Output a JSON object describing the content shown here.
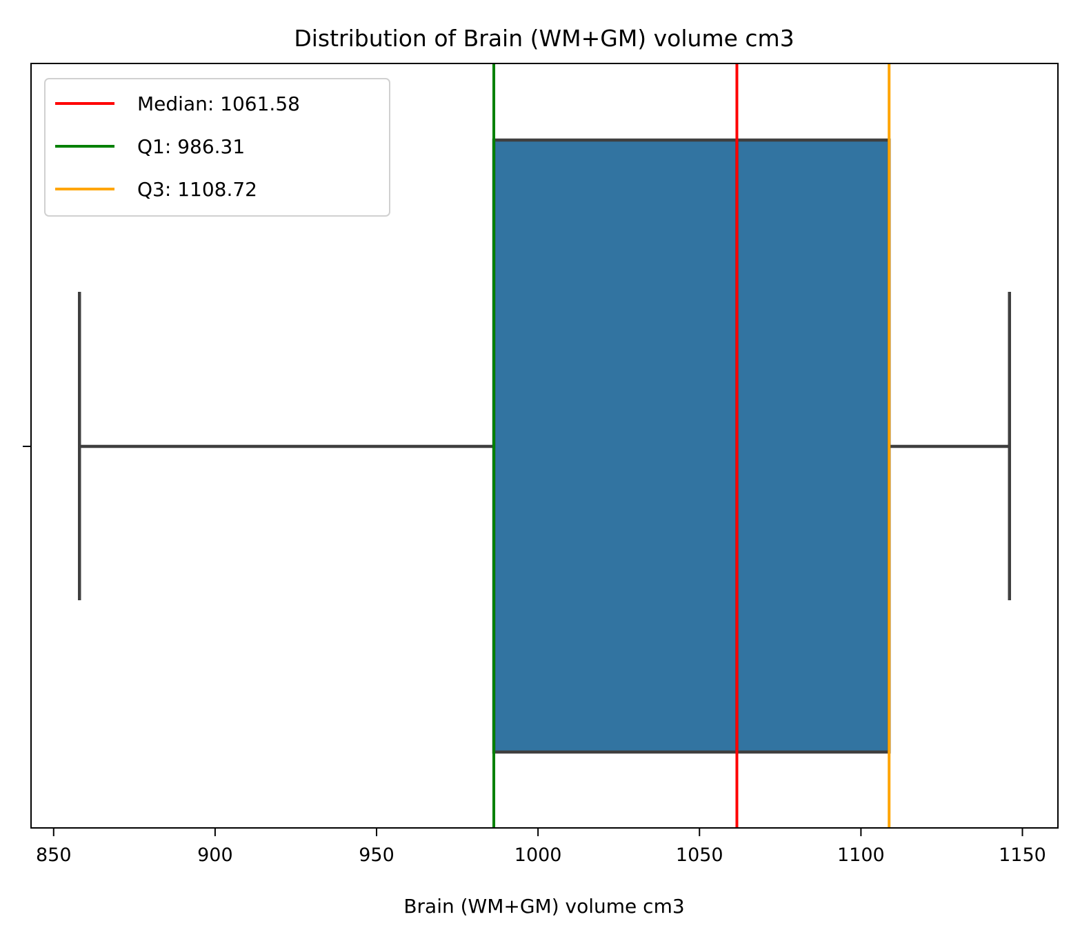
{
  "chart_data": {
    "type": "box",
    "title": "Distribution of Brain (WM+GM) volume cm3",
    "xlabel": "Brain (WM+GM) volume cm3",
    "ylabel": "",
    "xlim": [
      843,
      1161
    ],
    "xticks": [
      850,
      900,
      950,
      1000,
      1050,
      1100,
      1150
    ],
    "grid": false,
    "legend_position": "top-left",
    "box": {
      "whisker_low": 858,
      "q1": 986.31,
      "median": 1061.58,
      "q3": 1108.72,
      "whisker_high": 1146,
      "fill_color": "#3274a1",
      "line_color": "#3f3f3f"
    },
    "reference_lines": [
      {
        "label": "Median: 1061.58",
        "value": 1061.58,
        "color": "#ff0000"
      },
      {
        "label": "Q1: 986.31",
        "value": 986.31,
        "color": "#008000"
      },
      {
        "label": "Q3: 1108.72",
        "value": 1108.72,
        "color": "#ffa500"
      }
    ]
  }
}
